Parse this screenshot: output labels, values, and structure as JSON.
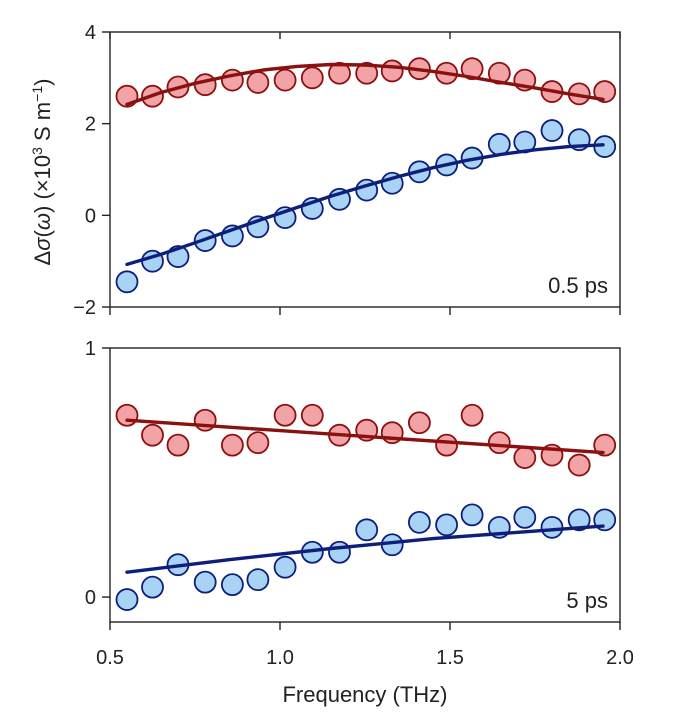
{
  "chart_data": {
    "type": "scatter",
    "xlabel": "Frequency (THz)",
    "ylabel": "Δσ(ω) (×10³ S m⁻¹)",
    "ylabel_parts": {
      "pre": "Δ",
      "sigma": "σ",
      "open": "(",
      "omega": "ω",
      "close": ")",
      "units_pre": " (×10",
      "exp": "3",
      "units_mid": " S m",
      "exp2": "−1",
      "units_close": ")"
    },
    "xlim": [
      0.5,
      2.0
    ],
    "x_ticks": [
      0.5,
      1.0,
      1.5,
      2.0
    ],
    "x_tick_labels": [
      "0.5",
      "1.0",
      "1.5",
      "2.0"
    ],
    "colors": {
      "red_fill": "#f2a3a6",
      "red_edge": "#8b1010",
      "red_line": "#8b1010",
      "blue_fill": "#a9d3f5",
      "blue_edge": "#0d1f7a",
      "blue_line": "#0d1f7a"
    },
    "panels": [
      {
        "label": "0.5 ps",
        "ylim": [
          -2,
          4
        ],
        "y_ticks": [
          -2,
          0,
          2,
          4
        ],
        "y_tick_labels": [
          "−2",
          "0",
          "2",
          "4"
        ],
        "series": [
          {
            "name": "red",
            "x": [
              0.55,
              0.625,
              0.7,
              0.78,
              0.86,
              0.935,
              1.015,
              1.095,
              1.175,
              1.255,
              1.33,
              1.41,
              1.49,
              1.565,
              1.645,
              1.72,
              1.8,
              1.88,
              1.955
            ],
            "y": [
              2.6,
              2.6,
              2.8,
              2.85,
              2.95,
              2.9,
              2.95,
              3.0,
              3.1,
              3.1,
              3.15,
              3.2,
              3.1,
              3.2,
              3.1,
              2.95,
              2.7,
              2.65,
              2.7
            ],
            "fit_x": [
              0.55,
              0.65,
              0.75,
              0.85,
              0.95,
              1.05,
              1.15,
              1.25,
              1.35,
              1.45,
              1.55,
              1.65,
              1.75,
              1.85,
              1.95
            ],
            "fit_y": [
              2.42,
              2.68,
              2.88,
              3.04,
              3.17,
              3.25,
              3.29,
              3.28,
              3.23,
              3.14,
              3.03,
              2.9,
              2.78,
              2.65,
              2.53
            ]
          },
          {
            "name": "blue",
            "x": [
              0.55,
              0.625,
              0.7,
              0.78,
              0.86,
              0.935,
              1.015,
              1.095,
              1.175,
              1.255,
              1.33,
              1.41,
              1.49,
              1.565,
              1.645,
              1.72,
              1.8,
              1.88,
              1.955
            ],
            "y": [
              -1.45,
              -1.0,
              -0.9,
              -0.55,
              -0.45,
              -0.25,
              -0.05,
              0.15,
              0.35,
              0.55,
              0.7,
              0.95,
              1.1,
              1.25,
              1.55,
              1.6,
              1.85,
              1.65,
              1.5
            ],
            "fit_x": [
              0.55,
              0.65,
              0.75,
              0.85,
              0.95,
              1.05,
              1.15,
              1.25,
              1.35,
              1.45,
              1.55,
              1.65,
              1.75,
              1.85,
              1.95
            ],
            "fit_y": [
              -1.07,
              -0.85,
              -0.6,
              -0.34,
              -0.08,
              0.17,
              0.42,
              0.64,
              0.85,
              1.04,
              1.2,
              1.33,
              1.43,
              1.5,
              1.54
            ]
          }
        ]
      },
      {
        "label": "5 ps",
        "ylim": [
          -0.1,
          1.0
        ],
        "y_ticks": [
          0,
          1
        ],
        "y_tick_labels": [
          "0",
          "1"
        ],
        "series": [
          {
            "name": "red",
            "x": [
              0.55,
              0.625,
              0.7,
              0.78,
              0.86,
              0.935,
              1.015,
              1.095,
              1.175,
              1.255,
              1.33,
              1.41,
              1.49,
              1.565,
              1.645,
              1.72,
              1.8,
              1.88,
              1.955
            ],
            "y": [
              0.73,
              0.65,
              0.61,
              0.71,
              0.61,
              0.62,
              0.73,
              0.73,
              0.65,
              0.67,
              0.66,
              0.7,
              0.61,
              0.73,
              0.62,
              0.56,
              0.57,
              0.53,
              0.61
            ],
            "fit_x": [
              0.55,
              1.95
            ],
            "fit_y": [
              0.71,
              0.58
            ]
          },
          {
            "name": "blue",
            "x": [
              0.55,
              0.625,
              0.7,
              0.78,
              0.86,
              0.935,
              1.015,
              1.095,
              1.175,
              1.255,
              1.33,
              1.41,
              1.49,
              1.565,
              1.645,
              1.72,
              1.8,
              1.88,
              1.955
            ],
            "y": [
              -0.01,
              0.04,
              0.13,
              0.06,
              0.05,
              0.07,
              0.12,
              0.18,
              0.18,
              0.27,
              0.21,
              0.3,
              0.29,
              0.33,
              0.28,
              0.32,
              0.28,
              0.31,
              0.31
            ],
            "fit_x": [
              0.55,
              0.85,
              1.15,
              1.45,
              1.75,
              1.95
            ],
            "fit_y": [
              0.1,
              0.15,
              0.195,
              0.235,
              0.265,
              0.285
            ]
          }
        ]
      }
    ]
  }
}
